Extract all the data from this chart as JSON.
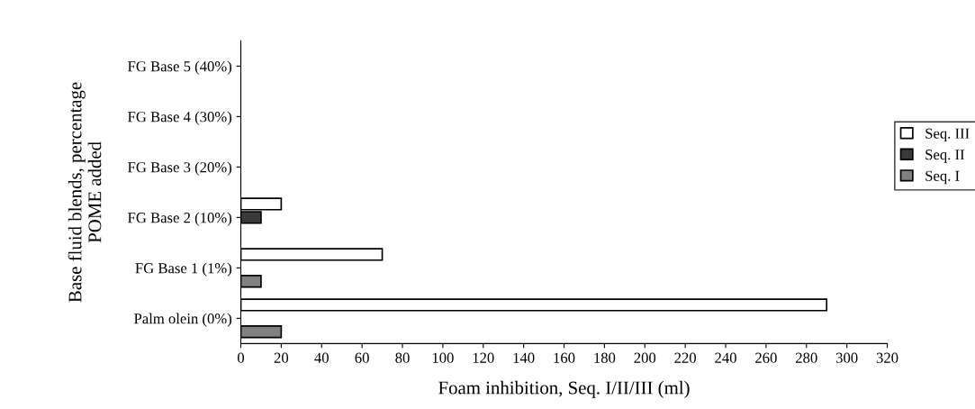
{
  "chart_data": {
    "type": "bar",
    "orientation": "horizontal",
    "xlabel": "Foam inhibition, Seq. I/II/III (ml)",
    "ylabel": "Base fluid blends, percentage\nPOME added",
    "categories": [
      "FG Base 5 (40%)",
      "FG Base 4 (30%)",
      "FG Base 3 (20%)",
      "FG Base 2 (10%)",
      "FG Base 1 (1%)",
      "Palm olein (0%)"
    ],
    "series": [
      {
        "name": "Seq. III",
        "color": "#ffffff",
        "values": [
          null,
          null,
          null,
          20,
          70,
          290
        ]
      },
      {
        "name": "Seq. II",
        "color": "#3a3a3a",
        "values": [
          null,
          null,
          null,
          10,
          null,
          null
        ]
      },
      {
        "name": "Seq. I",
        "color": "#808080",
        "values": [
          null,
          null,
          null,
          null,
          10,
          20
        ]
      }
    ],
    "xlim": [
      0,
      320
    ],
    "xticks": [
      0,
      20,
      40,
      60,
      80,
      100,
      120,
      140,
      160,
      180,
      200,
      220,
      240,
      260,
      280,
      300,
      320
    ],
    "grid": false,
    "legend": "right"
  }
}
